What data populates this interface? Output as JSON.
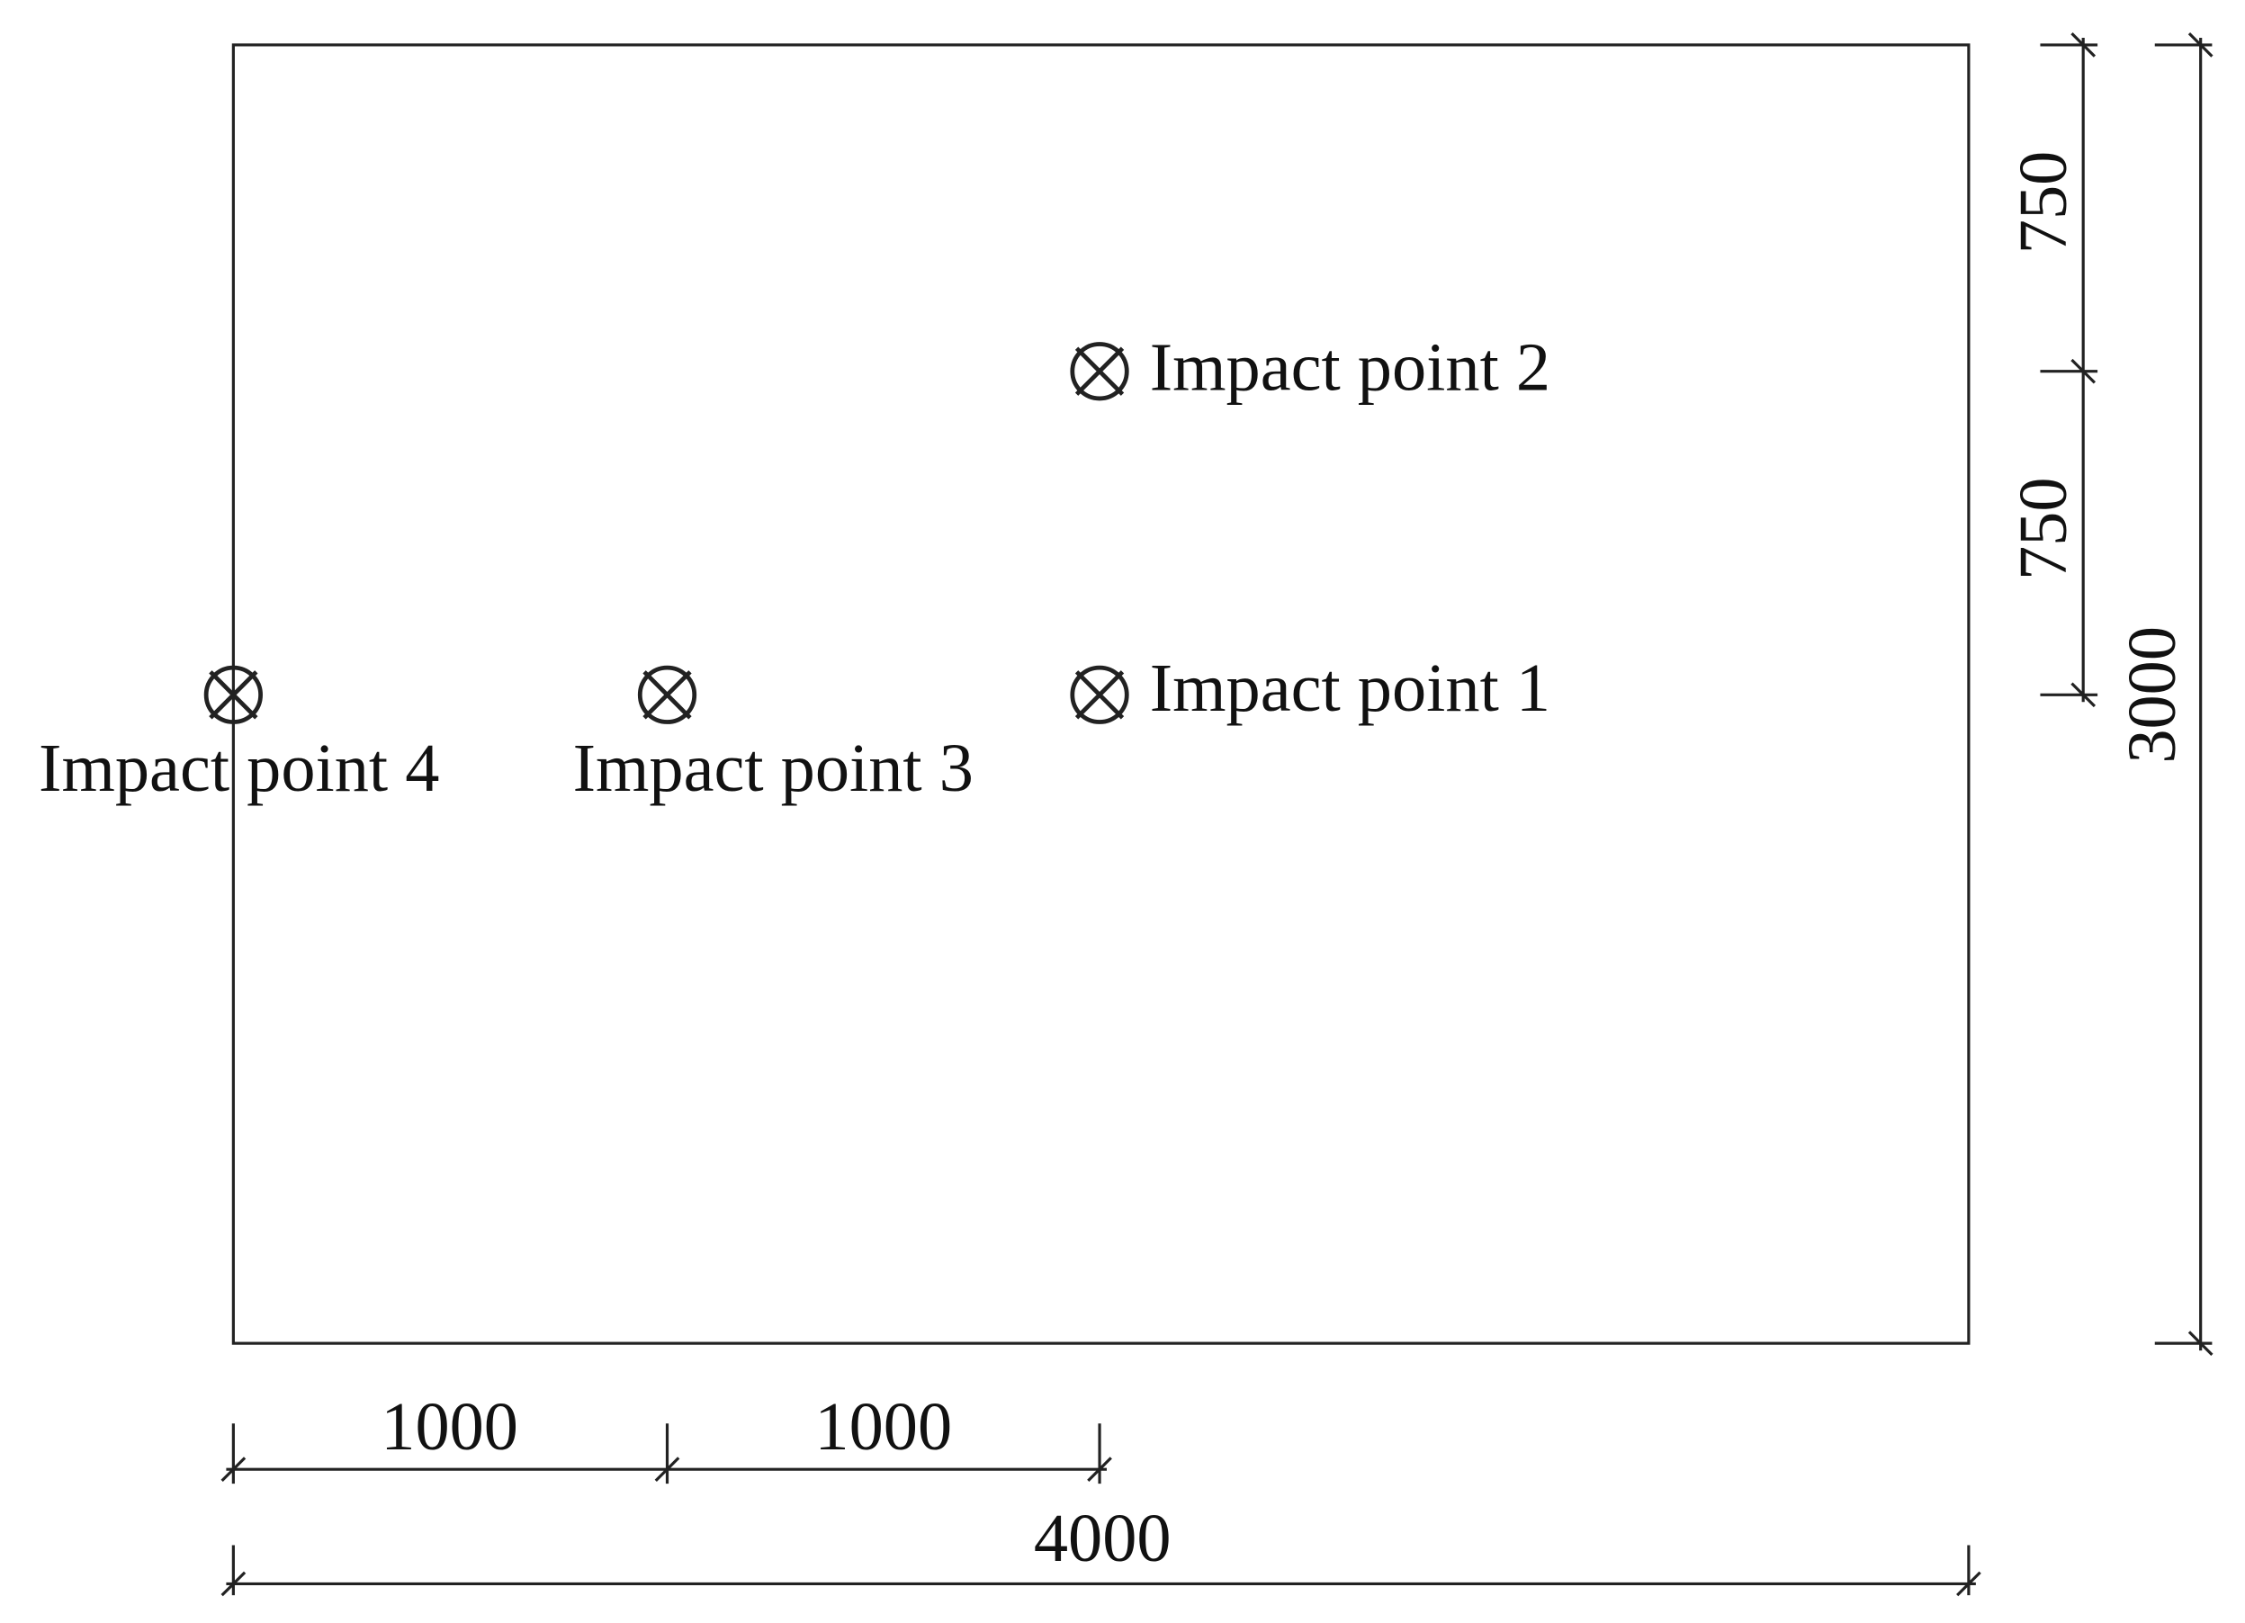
{
  "points": [
    {
      "label": "Impact point 1"
    },
    {
      "label": "Impact point 2"
    },
    {
      "label": "Impact point 3"
    },
    {
      "label": "Impact point 4"
    }
  ],
  "dimensions": {
    "horizontal": [
      "1000",
      "1000",
      "4000"
    ],
    "vertical": [
      "750",
      "750",
      "3000"
    ]
  }
}
